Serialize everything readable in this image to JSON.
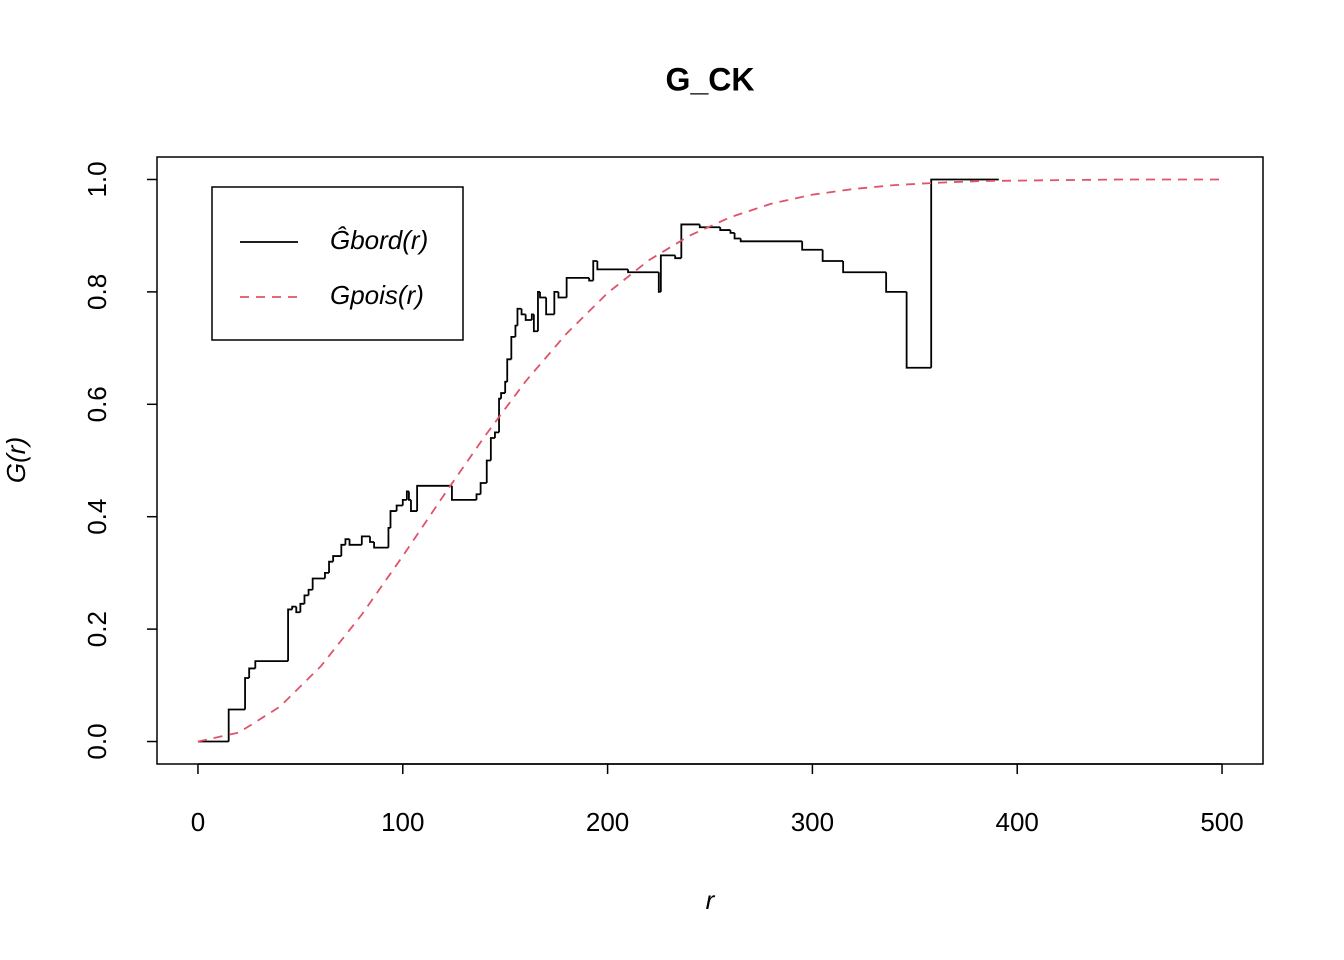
{
  "chart_data": {
    "type": "line",
    "title": "G_CK",
    "x_label": "r",
    "y_label": "G(r)",
    "xlim": [
      -20,
      520
    ],
    "ylim": [
      -0.04,
      1.04
    ],
    "xticks": [
      0,
      100,
      200,
      300,
      400,
      500
    ],
    "yticks": [
      {
        "value": 0,
        "label": "0.0"
      },
      {
        "value": 0.2,
        "label": "0.2"
      },
      {
        "value": 0.4,
        "label": "0.4"
      },
      {
        "value": 0.6,
        "label": "0.6"
      },
      {
        "value": 0.8,
        "label": "0.8"
      },
      {
        "value": 1,
        "label": "1.0"
      }
    ],
    "legend_position": "top-left",
    "series": [
      {
        "name": "Ĝbord(r)",
        "color": "#000000",
        "style": "step",
        "x": [
          0,
          15,
          23,
          25,
          28,
          44,
          46,
          48,
          50,
          52,
          54,
          56,
          62,
          64,
          66,
          70,
          72,
          74,
          80,
          84,
          86,
          93,
          94,
          97,
          100,
          102,
          103,
          104,
          107,
          124,
          136,
          138,
          141,
          143,
          145,
          147,
          148,
          150,
          151,
          153,
          155,
          156,
          158,
          160,
          163,
          164,
          166,
          167,
          170,
          174,
          176,
          180,
          191,
          193,
          195,
          210,
          225,
          226,
          233,
          236,
          245,
          255,
          260,
          262,
          265,
          295,
          305,
          315,
          336,
          346,
          358,
          391
        ],
        "values": [
          0,
          0.057,
          0.113,
          0.13,
          0.143,
          0.235,
          0.24,
          0.23,
          0.245,
          0.26,
          0.27,
          0.29,
          0.3,
          0.32,
          0.33,
          0.35,
          0.36,
          0.35,
          0.365,
          0.355,
          0.345,
          0.38,
          0.41,
          0.42,
          0.43,
          0.445,
          0.43,
          0.41,
          0.455,
          0.43,
          0.44,
          0.46,
          0.5,
          0.54,
          0.55,
          0.61,
          0.62,
          0.64,
          0.68,
          0.72,
          0.74,
          0.77,
          0.76,
          0.75,
          0.76,
          0.73,
          0.8,
          0.79,
          0.76,
          0.8,
          0.79,
          0.825,
          0.82,
          0.855,
          0.84,
          0.835,
          0.8,
          0.865,
          0.86,
          0.92,
          0.915,
          0.91,
          0.905,
          0.895,
          0.89,
          0.875,
          0.855,
          0.835,
          0.8,
          0.665,
          1,
          1
        ]
      },
      {
        "name": "Gpois(r)",
        "color": "#df536b",
        "style": "dashed",
        "x": [
          0,
          20,
          40,
          60,
          80,
          100,
          120,
          140,
          160,
          180,
          200,
          220,
          240,
          260,
          280,
          300,
          320,
          340,
          360,
          380,
          400,
          450,
          500
        ],
        "values": [
          0,
          0.016,
          0.062,
          0.134,
          0.226,
          0.33,
          0.438,
          0.543,
          0.641,
          0.726,
          0.798,
          0.856,
          0.9,
          0.933,
          0.957,
          0.973,
          0.983,
          0.99,
          0.994,
          0.997,
          0.998,
          1,
          1
        ]
      }
    ]
  }
}
